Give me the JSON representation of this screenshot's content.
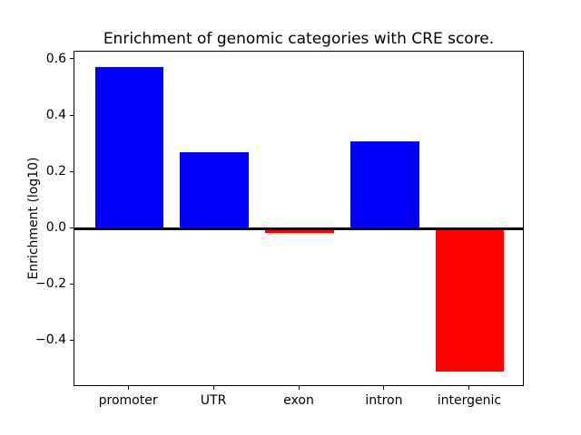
{
  "chart_data": {
    "type": "bar",
    "title": "Enrichment of genomic categories with CRE score.",
    "xlabel": "",
    "ylabel": "Enrichment (log10)",
    "categories": [
      "promoter",
      "UTR",
      "exon",
      "intron",
      "intergenic"
    ],
    "values": [
      0.575,
      0.27,
      -0.015,
      0.31,
      -0.51
    ],
    "bar_colors": [
      "#0000ff",
      "#0000ff",
      "#ff0000",
      "#0000ff",
      "#ff0000"
    ],
    "positive_color": "#0000ff",
    "negative_color": "#ff0000",
    "yticks": [
      0.6,
      0.4,
      0.2,
      0.0,
      -0.2,
      -0.4
    ],
    "ytick_labels": [
      "0.6",
      "0.4",
      "0.2",
      "0.0",
      "−0.2",
      "−0.4"
    ],
    "ylim": [
      -0.564,
      0.629
    ],
    "xlim": [
      -0.64,
      4.64
    ],
    "bar_width": 0.8,
    "zero_line": true,
    "zero_line_color": "#000000",
    "grid": false,
    "legend_position": "none",
    "spine_color": "#000000",
    "background_color": "#ffffff"
  }
}
